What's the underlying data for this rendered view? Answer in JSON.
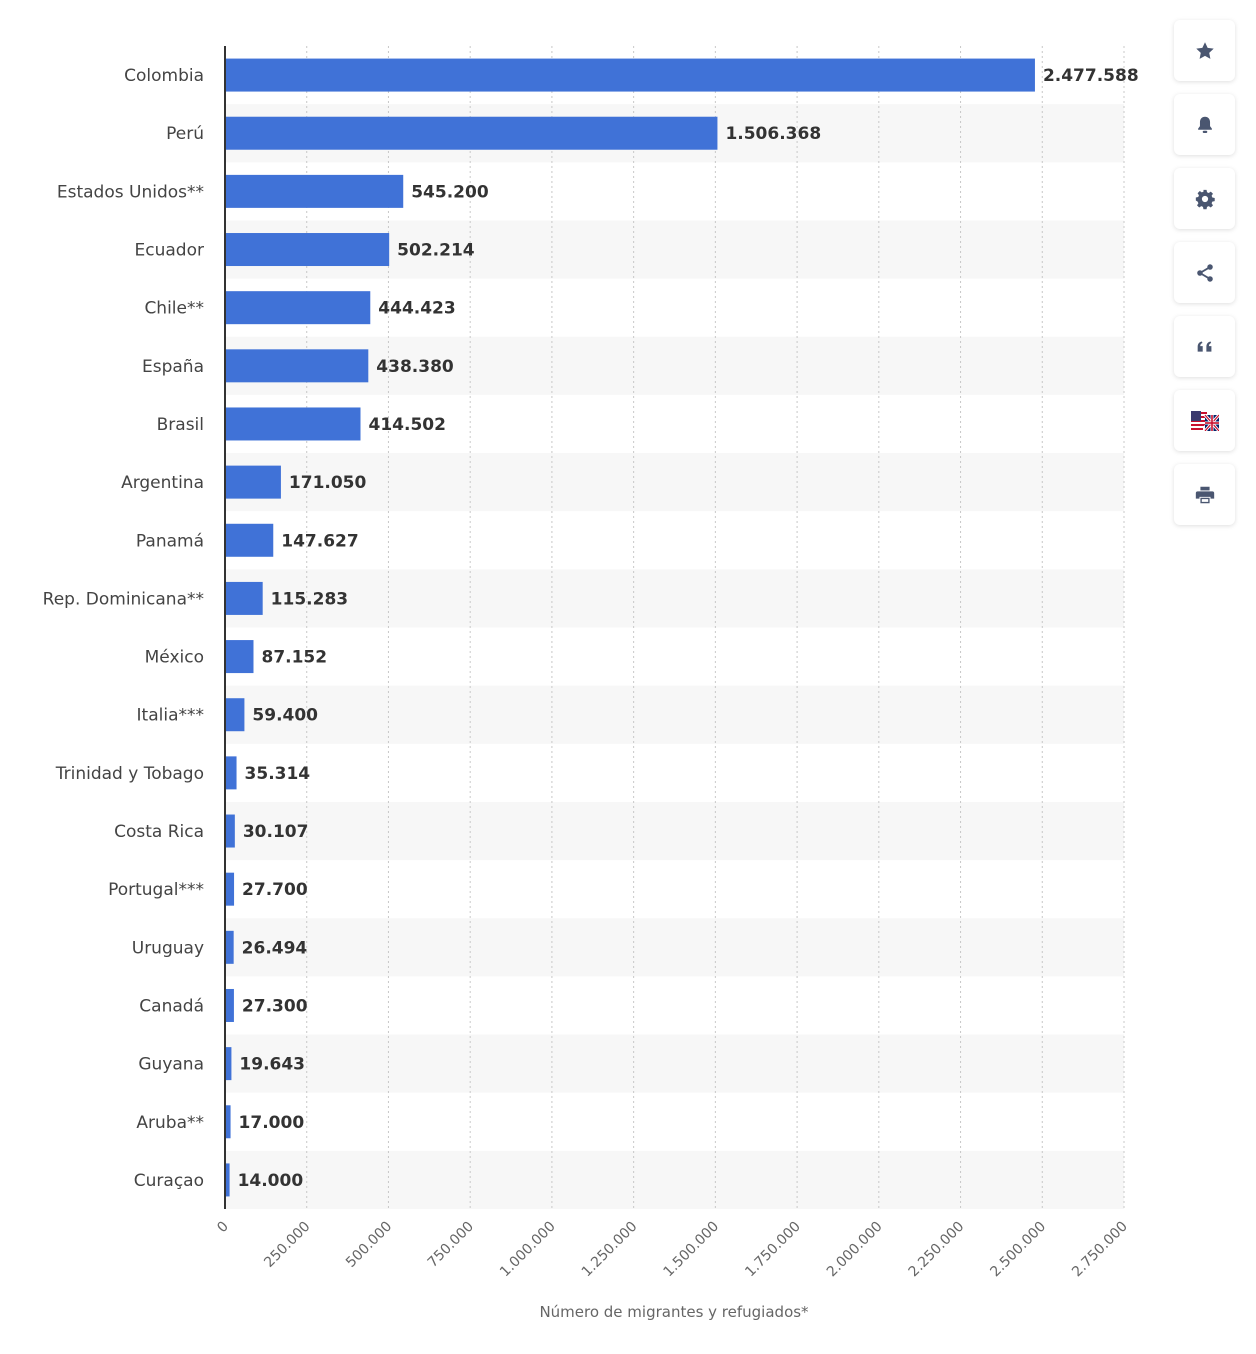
{
  "chart_data": {
    "type": "bar",
    "orientation": "horizontal",
    "categories": [
      "Colombia",
      "Perú",
      "Estados Unidos**",
      "Ecuador",
      "Chile**",
      "España",
      "Brasil",
      "Argentina",
      "Panamá",
      "Rep. Dominicana**",
      "México",
      "Italia***",
      "Trinidad y Tobago",
      "Costa Rica",
      "Portugal***",
      "Uruguay",
      "Canadá",
      "Guyana",
      "Aruba**",
      "Curaçao"
    ],
    "values": [
      2477588,
      1506368,
      545200,
      502214,
      444423,
      438380,
      414502,
      171050,
      147627,
      115283,
      87152,
      59400,
      35314,
      30107,
      27700,
      26494,
      27300,
      19643,
      17000,
      14000
    ],
    "value_labels": [
      "2.477.588",
      "1.506.368",
      "545.200",
      "502.214",
      "444.423",
      "438.380",
      "414.502",
      "171.050",
      "147.627",
      "115.283",
      "87.152",
      "59.400",
      "35.314",
      "30.107",
      "27.700",
      "26.494",
      "27.300",
      "19.643",
      "17.000",
      "14.000"
    ],
    "xlim": [
      0,
      2750000
    ],
    "ticks": [
      0,
      250000,
      500000,
      750000,
      1000000,
      1250000,
      1500000,
      1750000,
      2000000,
      2250000,
      2500000,
      2750000
    ],
    "tick_labels": [
      "0",
      "250.000",
      "500.000",
      "750.000",
      "1.000.000",
      "1.250.000",
      "1.500.000",
      "1.750.000",
      "2.000.000",
      "2.250.000",
      "2.500.000",
      "2.750.000"
    ],
    "xlabel": "Número de migrantes y refugiados*",
    "title": "",
    "grid": true,
    "bar_color": "#4072d7",
    "legend": "none"
  },
  "toolbar": {
    "items": [
      {
        "name": "favorite",
        "icon": "star-icon"
      },
      {
        "name": "notification",
        "icon": "bell-icon"
      },
      {
        "name": "settings",
        "icon": "gear-icon"
      },
      {
        "name": "share",
        "icon": "share-icon"
      },
      {
        "name": "cite",
        "icon": "quote-icon"
      },
      {
        "name": "language",
        "icon": "uk-us-flag-icon"
      },
      {
        "name": "print",
        "icon": "printer-icon"
      }
    ],
    "icon_color": "#4a5670"
  }
}
